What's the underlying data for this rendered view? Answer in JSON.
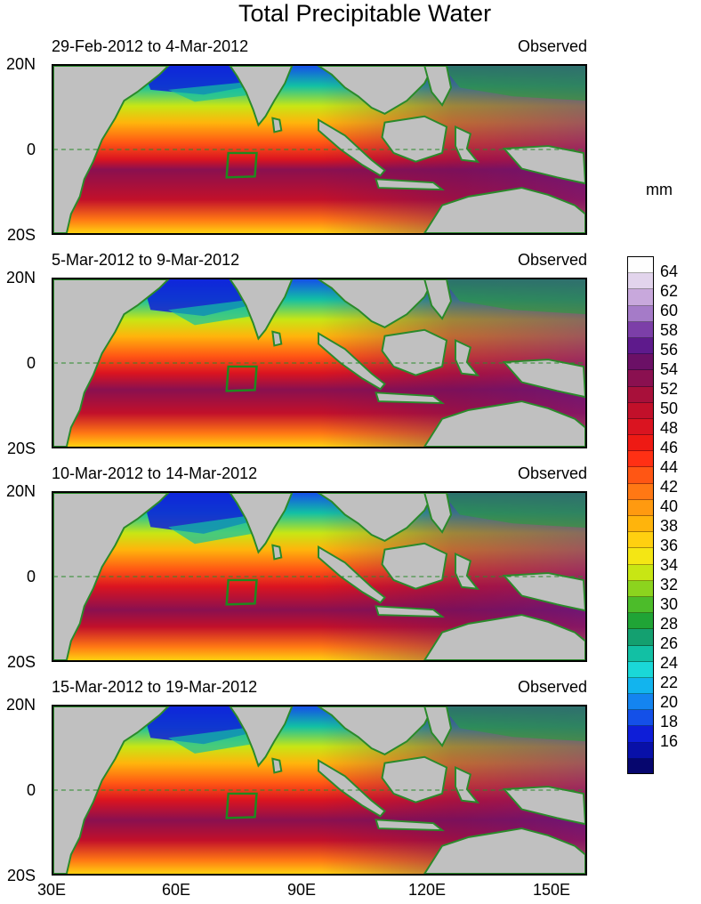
{
  "title": "Total Precipitable Water",
  "unit": "mm",
  "panels": [
    {
      "date_range": "29-Feb-2012 to 4-Mar-2012",
      "label": "Observed"
    },
    {
      "date_range": "5-Mar-2012 to 9-Mar-2012",
      "label": "Observed"
    },
    {
      "date_range": "10-Mar-2012 to 14-Mar-2012",
      "label": "Observed"
    },
    {
      "date_range": "15-Mar-2012 to 19-Mar-2012",
      "label": "Observed"
    }
  ],
  "lat_labels": [
    "20N",
    "0",
    "20S"
  ],
  "lon_labels": [
    "30E",
    "60E",
    "90E",
    "120E",
    "150E"
  ],
  "colorbar": {
    "labels": [
      "64",
      "62",
      "60",
      "58",
      "56",
      "54",
      "52",
      "50",
      "48",
      "46",
      "44",
      "42",
      "40",
      "38",
      "36",
      "34",
      "32",
      "30",
      "28",
      "26",
      "24",
      "22",
      "20",
      "18",
      "16"
    ],
    "colors": [
      "#fefefe",
      "#e2d4ec",
      "#c8a8dc",
      "#a57bc8",
      "#7c3fa8",
      "#5e1a8c",
      "#6b1066",
      "#8a1050",
      "#a8103a",
      "#c2102a",
      "#da1420",
      "#ee1a14",
      "#ff3014",
      "#ff5614",
      "#ff7814",
      "#ff9a10",
      "#ffb40c",
      "#ffd010",
      "#f4e614",
      "#c8e614",
      "#8cd41e",
      "#4cbc2a",
      "#20a436",
      "#14a070",
      "#12c0a4",
      "#1ad8d8",
      "#12b4ee",
      "#1484f0",
      "#1450e8",
      "#0e1ed8",
      "#0810a8",
      "#06066e"
    ]
  },
  "colors": {
    "land": "#c0c0c0",
    "coast": "#2a8a2a",
    "box": "#1e8a1e"
  }
}
